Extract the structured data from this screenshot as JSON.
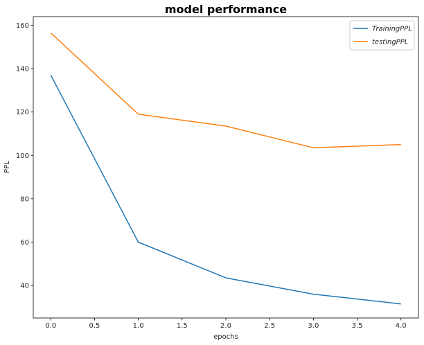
{
  "chart_data": {
    "type": "line",
    "title": "model performance",
    "xlabel": "epochs",
    "ylabel": "PPL",
    "xlim": [
      -0.2,
      4.2
    ],
    "ylim": [
      25,
      164
    ],
    "xticks": [
      0.0,
      0.5,
      1.0,
      1.5,
      2.0,
      2.5,
      3.0,
      3.5,
      4.0
    ],
    "xtick_labels": [
      "0.0",
      "0.5",
      "1.0",
      "1.5",
      "2.0",
      "2.5",
      "3.0",
      "3.5",
      "4.0"
    ],
    "yticks": [
      40,
      60,
      80,
      100,
      120,
      140,
      160
    ],
    "ytick_labels": [
      "40",
      "60",
      "80",
      "100",
      "120",
      "140",
      "160"
    ],
    "grid": false,
    "legend_position": "top-right",
    "x": [
      0,
      1,
      2,
      3,
      4
    ],
    "series": [
      {
        "name": "TrainingPPL",
        "color": "#1f77b4",
        "values": [
          137,
          60,
          43.5,
          36,
          31.5
        ]
      },
      {
        "name": "testingPPL",
        "color": "#ff7f0e",
        "values": [
          156.5,
          119,
          113.5,
          103.5,
          105
        ]
      }
    ]
  }
}
